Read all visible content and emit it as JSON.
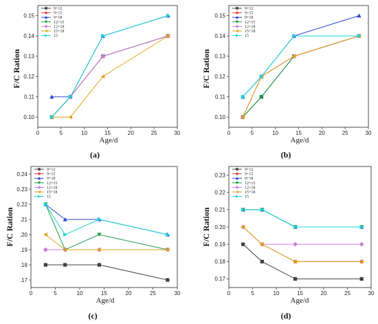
{
  "colors": {
    "9+12": "#404040",
    "9+15": "#e8413a",
    "9+18": "#2a44d4",
    "12+15": "#1a9e48",
    "12+18": "#cf7adf",
    "15+18": "#e0a21a",
    "15": "#16d4d4"
  },
  "chart_data": [
    {
      "type": "line",
      "panel_label": "(a)",
      "xlabel": "Age/d",
      "ylabel": "F/C Ration",
      "xlim": [
        0,
        30
      ],
      "ylim": [
        0.095,
        0.155
      ],
      "xticks": [
        0,
        5,
        10,
        15,
        20,
        25,
        30
      ],
      "yticks": [
        0.1,
        0.11,
        0.12,
        0.13,
        0.14,
        0.15
      ],
      "ytick_labels": [
        "0.10",
        "0.11",
        "0.12",
        "0.13",
        "0.14",
        "0.15"
      ],
      "legend": "top-left",
      "x": [
        3,
        7,
        14,
        28
      ],
      "series": [
        {
          "name": "9+12",
          "marker": "square",
          "values": [
            0.1,
            0.11,
            0.13,
            0.14
          ]
        },
        {
          "name": "9+15",
          "marker": "circle",
          "values": [
            0.1,
            0.11,
            0.13,
            0.14
          ]
        },
        {
          "name": "9+18",
          "marker": "triangle-up",
          "values": [
            0.11,
            0.11,
            0.14,
            0.15
          ]
        },
        {
          "name": "12+15",
          "marker": "triangle-down",
          "values": [
            0.1,
            0.11,
            0.13,
            0.14
          ]
        },
        {
          "name": "12+18",
          "marker": "diamond",
          "values": [
            0.1,
            0.11,
            0.13,
            0.14
          ]
        },
        {
          "name": "15+18",
          "marker": "triangle-left",
          "values": [
            0.1,
            0.1,
            0.12,
            0.14
          ]
        },
        {
          "name": "15",
          "marker": "triangle-right",
          "values": [
            0.1,
            0.11,
            0.14,
            0.15
          ]
        }
      ]
    },
    {
      "type": "line",
      "panel_label": "(b)",
      "xlabel": "Age/d",
      "ylabel": "F/C Ration",
      "xlim": [
        0,
        30
      ],
      "ylim": [
        0.095,
        0.155
      ],
      "xticks": [
        0,
        5,
        10,
        15,
        20,
        25,
        30
      ],
      "yticks": [
        0.1,
        0.11,
        0.12,
        0.13,
        0.14,
        0.15
      ],
      "ytick_labels": [
        "0.10",
        "0.11",
        "0.12",
        "0.13",
        "0.14",
        "0.15"
      ],
      "legend": "top-left",
      "x": [
        3,
        7,
        14,
        28
      ],
      "series": [
        {
          "name": "9+12",
          "marker": "square",
          "values": [
            0.1,
            0.11,
            0.13,
            0.14
          ]
        },
        {
          "name": "9+15",
          "marker": "circle",
          "values": [
            0.1,
            0.12,
            0.13,
            0.14
          ]
        },
        {
          "name": "9+18",
          "marker": "triangle-up",
          "values": [
            0.11,
            0.12,
            0.14,
            0.15
          ]
        },
        {
          "name": "12+15",
          "marker": "triangle-down",
          "values": [
            0.1,
            0.11,
            0.13,
            0.14
          ]
        },
        {
          "name": "12+18",
          "marker": "diamond",
          "values": [
            0.1,
            0.12,
            0.13,
            0.14
          ]
        },
        {
          "name": "15+18",
          "marker": "triangle-left",
          "values": [
            0.1,
            0.12,
            0.13,
            0.14
          ]
        },
        {
          "name": "15",
          "marker": "triangle-right",
          "values": [
            0.11,
            0.12,
            0.14,
            0.14
          ]
        }
      ]
    },
    {
      "type": "line",
      "panel_label": "(c)",
      "xlabel": "Age/d",
      "ylabel": "F/C Ration",
      "xlim": [
        0,
        30
      ],
      "ylim": [
        0.165,
        0.245
      ],
      "xticks": [
        0,
        5,
        10,
        15,
        20,
        25,
        30
      ],
      "yticks": [
        0.17,
        0.18,
        0.19,
        0.2,
        0.21,
        0.22,
        0.23,
        0.24
      ],
      "ytick_labels": [
        ".17",
        ".18",
        ".19",
        ".20",
        ".21",
        "0.22",
        "0.23",
        "0.24"
      ],
      "legend": "top-left",
      "x": [
        3,
        7,
        14,
        28
      ],
      "series": [
        {
          "name": "9+12",
          "marker": "square",
          "values": [
            0.18,
            0.18,
            0.18,
            0.17
          ]
        },
        {
          "name": "9+15",
          "marker": "circle",
          "values": [
            0.19,
            0.19,
            0.19,
            0.19
          ]
        },
        {
          "name": "9+18",
          "marker": "triangle-up",
          "values": [
            0.22,
            0.21,
            0.21,
            0.2
          ]
        },
        {
          "name": "12+15",
          "marker": "triangle-down",
          "values": [
            0.22,
            0.19,
            0.2,
            0.19
          ]
        },
        {
          "name": "12+18",
          "marker": "diamond",
          "values": [
            0.19,
            0.19,
            0.19,
            0.19
          ]
        },
        {
          "name": "15+18",
          "marker": "triangle-left",
          "values": [
            0.2,
            0.19,
            0.19,
            0.19
          ]
        },
        {
          "name": "15",
          "marker": "triangle-right",
          "values": [
            0.22,
            0.2,
            0.21,
            0.2
          ]
        }
      ]
    },
    {
      "type": "line",
      "panel_label": "(d)",
      "xlabel": "Age/d",
      "ylabel": "F/C Ration",
      "xlim": [
        0,
        30
      ],
      "ylim": [
        0.165,
        0.235
      ],
      "xticks": [
        0,
        5,
        10,
        15,
        20,
        25,
        30
      ],
      "yticks": [
        0.17,
        0.18,
        0.19,
        0.2,
        0.21,
        0.22,
        0.23
      ],
      "ytick_labels": [
        "0.17",
        "0.18",
        "0.19",
        "0.20",
        "0.21",
        "0.22",
        "0.23"
      ],
      "legend": "top-left",
      "x": [
        3,
        7,
        14,
        28
      ],
      "series": [
        {
          "name": "9+12",
          "marker": "square",
          "values": [
            0.19,
            0.18,
            0.17,
            0.17
          ]
        },
        {
          "name": "9+15",
          "marker": "circle",
          "values": [
            0.2,
            0.19,
            0.18,
            0.18
          ]
        },
        {
          "name": "9+18",
          "marker": "triangle-up",
          "values": [
            0.21,
            0.21,
            0.2,
            0.2
          ]
        },
        {
          "name": "12+15",
          "marker": "triangle-down",
          "values": [
            0.21,
            0.21,
            0.2,
            0.2
          ]
        },
        {
          "name": "12+18",
          "marker": "diamond",
          "values": [
            0.2,
            0.19,
            0.19,
            0.19
          ]
        },
        {
          "name": "15+18",
          "marker": "triangle-left",
          "values": [
            0.2,
            0.19,
            0.18,
            0.18
          ]
        },
        {
          "name": "15",
          "marker": "triangle-right",
          "values": [
            0.21,
            0.21,
            0.2,
            0.2
          ]
        }
      ]
    }
  ]
}
